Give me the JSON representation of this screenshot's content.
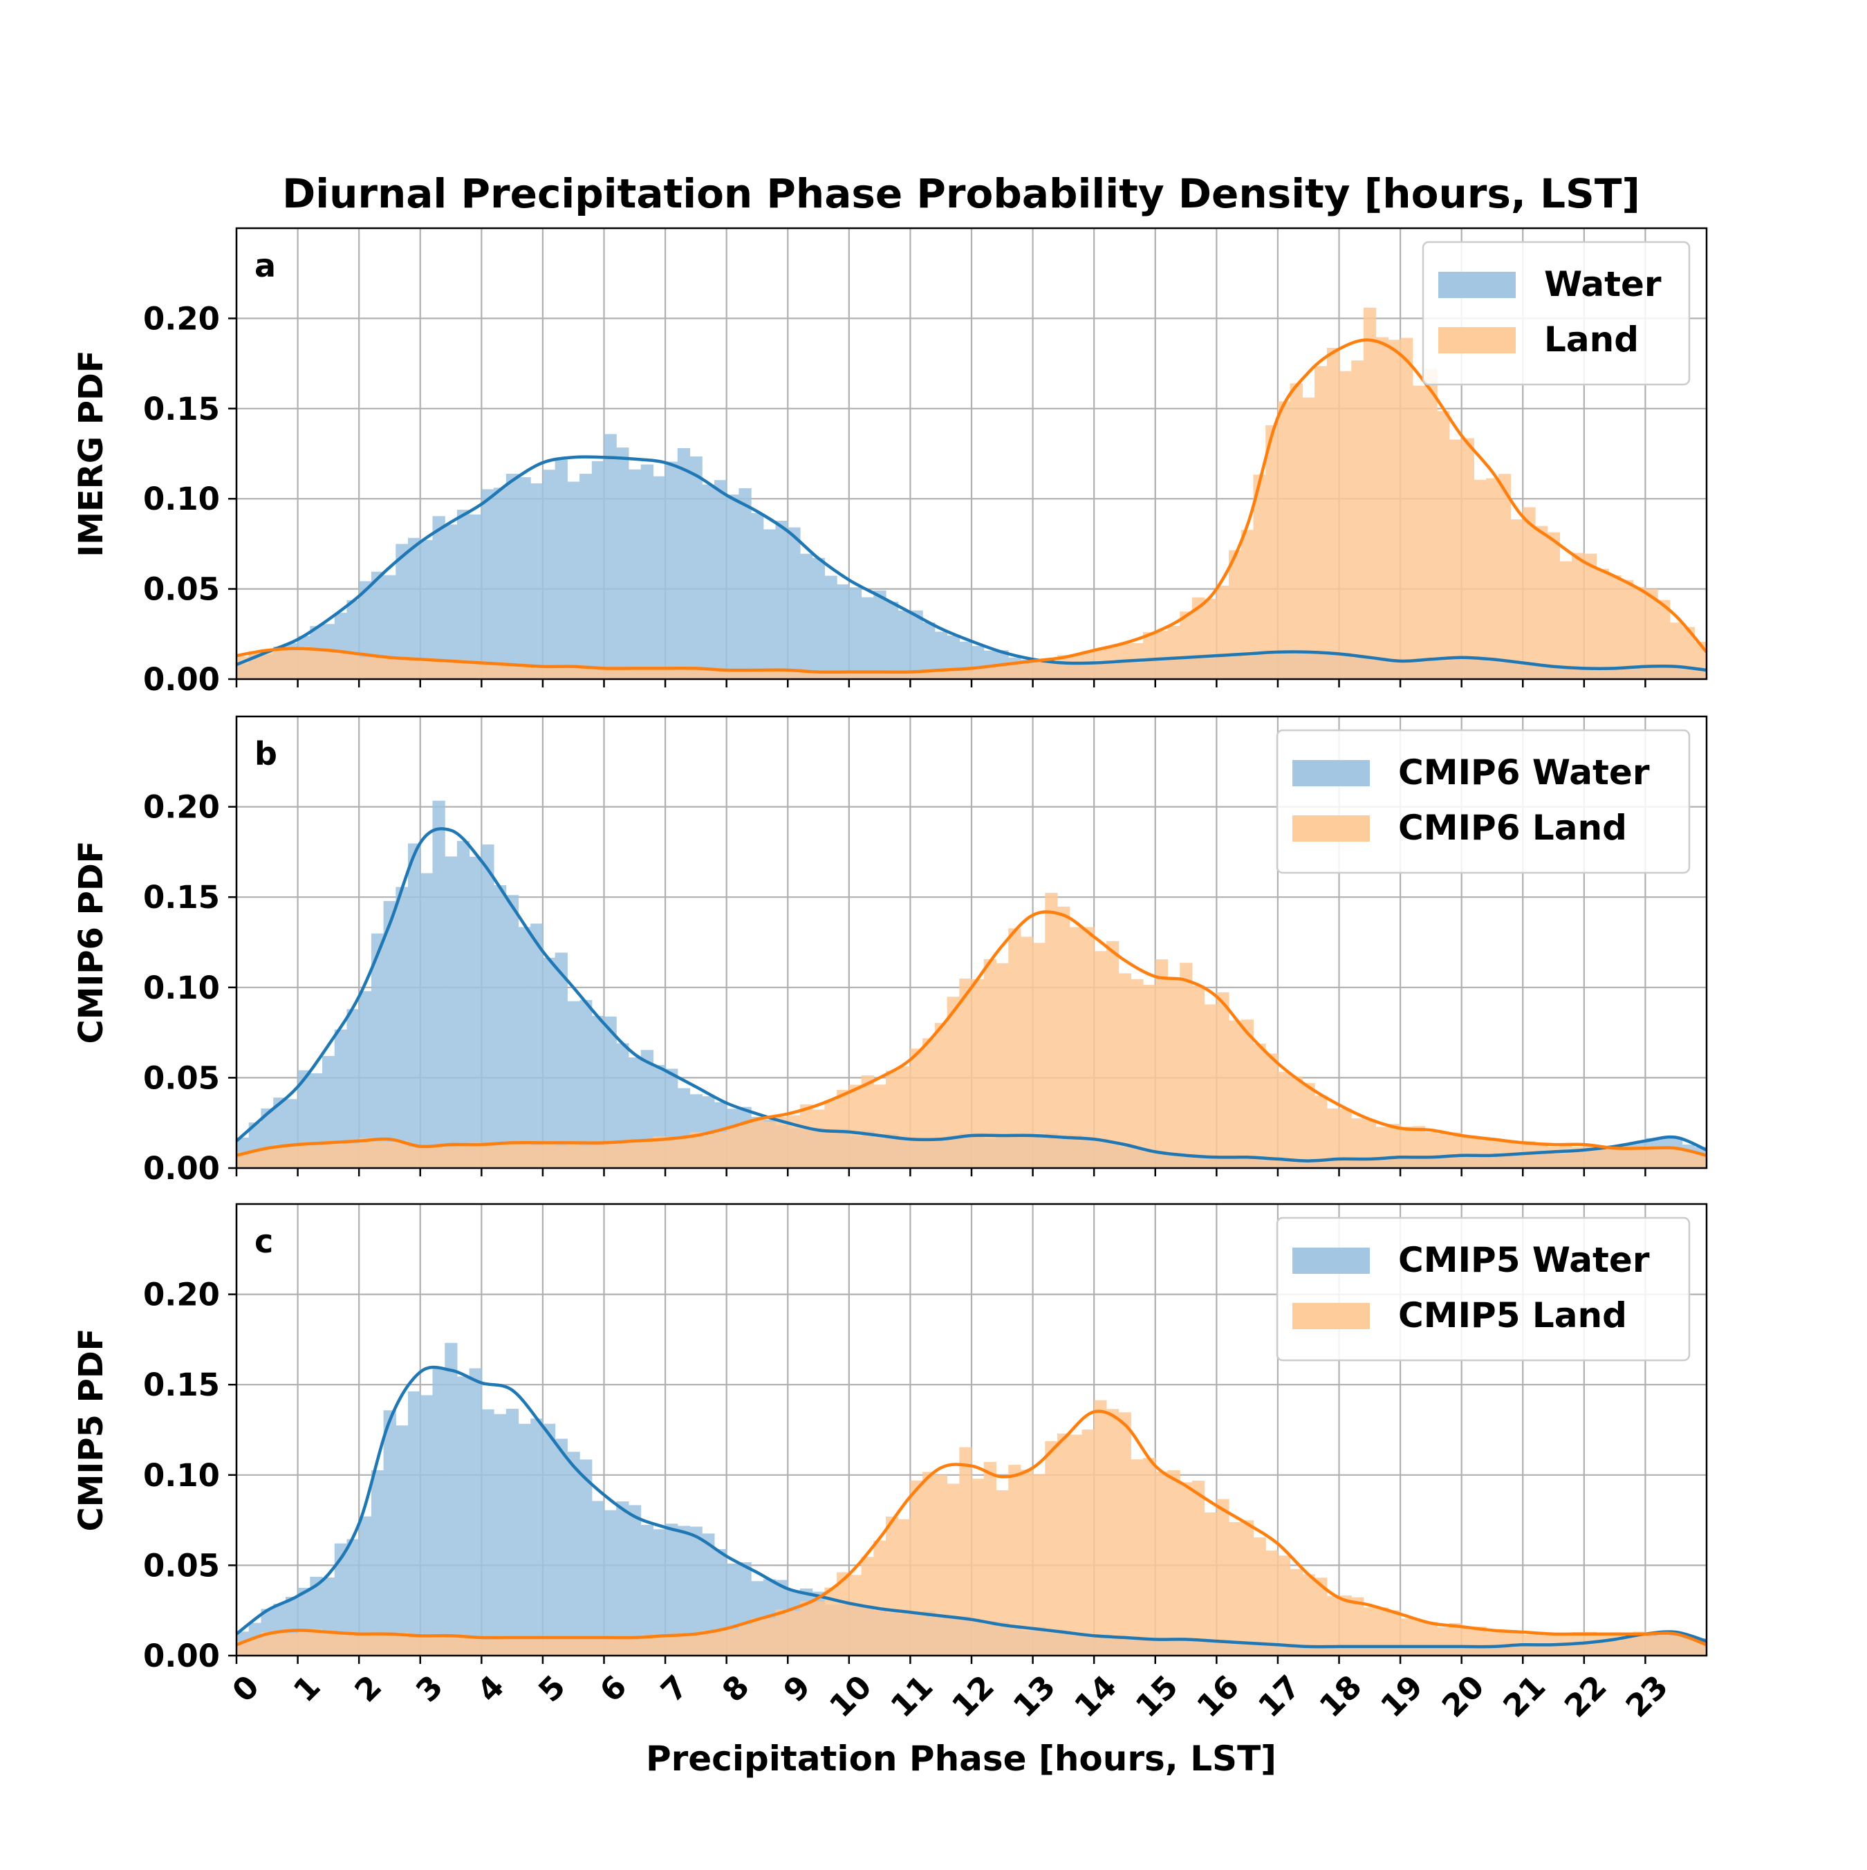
{
  "title": "Diurnal Precipitation Phase Probability Density [hours, LST]",
  "xlabel": "Precipitation Phase [hours, LST]",
  "colors": {
    "water": "#1f77b4",
    "land": "#ff7f0e",
    "water_fill": "#9ec3e0",
    "land_fill": "#fec896",
    "grid": "#b0b0b0"
  },
  "chart_data": [
    {
      "type": "area",
      "panel": "a",
      "ylabel": "IMERG PDF",
      "xlim": [
        0,
        24
      ],
      "ylim": [
        0,
        0.25
      ],
      "grid": true,
      "legend_position": "top-right",
      "x_ticks": [
        0,
        1,
        2,
        3,
        4,
        5,
        6,
        7,
        8,
        9,
        10,
        11,
        12,
        13,
        14,
        15,
        16,
        17,
        18,
        19,
        20,
        21,
        22,
        23
      ],
      "y_ticks": [
        "0.00",
        "0.05",
        "0.10",
        "0.15",
        "0.20"
      ],
      "series": [
        {
          "name": "Water",
          "key": "water",
          "x": [
            0,
            0.5,
            1,
            1.5,
            2,
            2.5,
            3,
            3.5,
            4,
            4.5,
            5,
            5.5,
            6,
            6.5,
            7,
            7.5,
            8,
            8.5,
            9,
            9.5,
            10,
            10.5,
            11,
            11.5,
            12,
            12.5,
            13,
            13.5,
            14,
            14.5,
            15,
            15.5,
            16,
            16.5,
            17,
            17.5,
            18,
            18.5,
            19,
            19.5,
            20,
            20.5,
            21,
            21.5,
            22,
            22.5,
            23,
            23.5,
            24
          ],
          "y": [
            0.008,
            0.015,
            0.022,
            0.033,
            0.046,
            0.062,
            0.076,
            0.087,
            0.097,
            0.11,
            0.12,
            0.123,
            0.123,
            0.122,
            0.12,
            0.113,
            0.102,
            0.093,
            0.082,
            0.067,
            0.055,
            0.046,
            0.037,
            0.028,
            0.021,
            0.015,
            0.011,
            0.009,
            0.009,
            0.01,
            0.011,
            0.012,
            0.013,
            0.014,
            0.015,
            0.015,
            0.014,
            0.012,
            0.01,
            0.011,
            0.012,
            0.011,
            0.009,
            0.007,
            0.006,
            0.006,
            0.007,
            0.007,
            0.005
          ]
        },
        {
          "name": "Land",
          "key": "land",
          "x": [
            0,
            0.5,
            1,
            1.5,
            2,
            2.5,
            3,
            3.5,
            4,
            4.5,
            5,
            5.5,
            6,
            6.5,
            7,
            7.5,
            8,
            8.5,
            9,
            9.5,
            10,
            10.5,
            11,
            11.5,
            12,
            12.5,
            13,
            13.5,
            14,
            14.5,
            15,
            15.5,
            16,
            16.5,
            17,
            17.5,
            18,
            18.5,
            19,
            19.5,
            20,
            20.5,
            21,
            21.5,
            22,
            22.5,
            23,
            23.5,
            24
          ],
          "y": [
            0.013,
            0.016,
            0.017,
            0.016,
            0.014,
            0.012,
            0.011,
            0.01,
            0.009,
            0.008,
            0.007,
            0.007,
            0.006,
            0.006,
            0.006,
            0.006,
            0.005,
            0.005,
            0.005,
            0.004,
            0.004,
            0.004,
            0.004,
            0.005,
            0.006,
            0.008,
            0.01,
            0.012,
            0.016,
            0.02,
            0.026,
            0.035,
            0.05,
            0.085,
            0.145,
            0.17,
            0.183,
            0.188,
            0.18,
            0.16,
            0.135,
            0.115,
            0.09,
            0.077,
            0.065,
            0.057,
            0.048,
            0.035,
            0.015
          ]
        }
      ]
    },
    {
      "type": "area",
      "panel": "b",
      "ylabel": "CMIP6 PDF",
      "xlim": [
        0,
        24
      ],
      "ylim": [
        0,
        0.25
      ],
      "grid": true,
      "legend_position": "top-right",
      "x_ticks": [
        0,
        1,
        2,
        3,
        4,
        5,
        6,
        7,
        8,
        9,
        10,
        11,
        12,
        13,
        14,
        15,
        16,
        17,
        18,
        19,
        20,
        21,
        22,
        23
      ],
      "y_ticks": [
        "0.00",
        "0.05",
        "0.10",
        "0.15",
        "0.20"
      ],
      "series": [
        {
          "name": "CMIP6 Water",
          "key": "water",
          "x": [
            0,
            0.5,
            1,
            1.5,
            2,
            2.5,
            3,
            3.5,
            4,
            4.5,
            5,
            5.5,
            6,
            6.5,
            7,
            7.5,
            8,
            8.5,
            9,
            9.5,
            10,
            10.5,
            11,
            11.5,
            12,
            12.5,
            13,
            13.5,
            14,
            14.5,
            15,
            15.5,
            16,
            16.5,
            17,
            17.5,
            18,
            18.5,
            19,
            19.5,
            20,
            20.5,
            21,
            21.5,
            22,
            22.5,
            23,
            23.5,
            24
          ],
          "y": [
            0.015,
            0.03,
            0.045,
            0.068,
            0.095,
            0.135,
            0.18,
            0.187,
            0.17,
            0.145,
            0.12,
            0.1,
            0.08,
            0.063,
            0.054,
            0.045,
            0.036,
            0.03,
            0.025,
            0.021,
            0.02,
            0.018,
            0.016,
            0.016,
            0.018,
            0.018,
            0.018,
            0.017,
            0.016,
            0.013,
            0.009,
            0.007,
            0.006,
            0.006,
            0.005,
            0.004,
            0.005,
            0.005,
            0.006,
            0.006,
            0.007,
            0.007,
            0.008,
            0.009,
            0.01,
            0.012,
            0.015,
            0.017,
            0.01
          ]
        },
        {
          "name": "CMIP6 Land",
          "key": "land",
          "x": [
            0,
            0.5,
            1,
            1.5,
            2,
            2.5,
            3,
            3.5,
            4,
            4.5,
            5,
            5.5,
            6,
            6.5,
            7,
            7.5,
            8,
            8.5,
            9,
            9.5,
            10,
            10.5,
            11,
            11.5,
            12,
            12.5,
            13,
            13.5,
            14,
            14.5,
            15,
            15.5,
            16,
            16.5,
            17,
            17.5,
            18,
            18.5,
            19,
            19.5,
            20,
            20.5,
            21,
            21.5,
            22,
            22.5,
            23,
            23.5,
            24
          ],
          "y": [
            0.007,
            0.011,
            0.013,
            0.014,
            0.015,
            0.016,
            0.012,
            0.013,
            0.013,
            0.014,
            0.014,
            0.014,
            0.014,
            0.015,
            0.016,
            0.018,
            0.022,
            0.027,
            0.03,
            0.035,
            0.042,
            0.05,
            0.06,
            0.078,
            0.1,
            0.123,
            0.14,
            0.14,
            0.128,
            0.115,
            0.106,
            0.104,
            0.095,
            0.075,
            0.058,
            0.045,
            0.035,
            0.027,
            0.022,
            0.021,
            0.018,
            0.016,
            0.014,
            0.013,
            0.013,
            0.011,
            0.011,
            0.011,
            0.007
          ]
        }
      ]
    },
    {
      "type": "area",
      "panel": "c",
      "ylabel": "CMIP5 PDF",
      "xlim": [
        0,
        24
      ],
      "ylim": [
        0,
        0.25
      ],
      "grid": true,
      "legend_position": "top-right",
      "x_ticks": [
        0,
        1,
        2,
        3,
        4,
        5,
        6,
        7,
        8,
        9,
        10,
        11,
        12,
        13,
        14,
        15,
        16,
        17,
        18,
        19,
        20,
        21,
        22,
        23
      ],
      "y_ticks": [
        "0.00",
        "0.05",
        "0.10",
        "0.15",
        "0.20"
      ],
      "series": [
        {
          "name": "CMIP5 Water",
          "key": "water",
          "x": [
            0,
            0.5,
            1,
            1.5,
            2,
            2.5,
            3,
            3.5,
            4,
            4.5,
            5,
            5.5,
            6,
            6.5,
            7,
            7.5,
            8,
            8.5,
            9,
            9.5,
            10,
            10.5,
            11,
            11.5,
            12,
            12.5,
            13,
            13.5,
            14,
            14.5,
            15,
            15.5,
            16,
            16.5,
            17,
            17.5,
            18,
            18.5,
            19,
            19.5,
            20,
            20.5,
            21,
            21.5,
            22,
            22.5,
            23,
            23.5,
            24
          ],
          "y": [
            0.012,
            0.025,
            0.033,
            0.045,
            0.073,
            0.13,
            0.157,
            0.158,
            0.151,
            0.147,
            0.127,
            0.105,
            0.089,
            0.077,
            0.071,
            0.066,
            0.055,
            0.046,
            0.037,
            0.033,
            0.029,
            0.026,
            0.024,
            0.022,
            0.02,
            0.017,
            0.015,
            0.013,
            0.011,
            0.01,
            0.009,
            0.009,
            0.008,
            0.007,
            0.006,
            0.005,
            0.005,
            0.005,
            0.005,
            0.005,
            0.005,
            0.005,
            0.006,
            0.006,
            0.007,
            0.009,
            0.012,
            0.013,
            0.008
          ]
        },
        {
          "name": "CMIP5 Land",
          "key": "land",
          "x": [
            0,
            0.5,
            1,
            1.5,
            2,
            2.5,
            3,
            3.5,
            4,
            4.5,
            5,
            5.5,
            6,
            6.5,
            7,
            7.5,
            8,
            8.5,
            9,
            9.5,
            10,
            10.5,
            11,
            11.5,
            12,
            12.5,
            13,
            13.5,
            14,
            14.5,
            15,
            15.5,
            16,
            16.5,
            17,
            17.5,
            18,
            18.5,
            19,
            19.5,
            20,
            20.5,
            21,
            21.5,
            22,
            22.5,
            23,
            23.5,
            24
          ],
          "y": [
            0.006,
            0.012,
            0.014,
            0.013,
            0.012,
            0.012,
            0.011,
            0.011,
            0.01,
            0.01,
            0.01,
            0.01,
            0.01,
            0.01,
            0.011,
            0.012,
            0.015,
            0.02,
            0.025,
            0.032,
            0.045,
            0.065,
            0.088,
            0.104,
            0.105,
            0.099,
            0.104,
            0.12,
            0.135,
            0.128,
            0.105,
            0.094,
            0.083,
            0.073,
            0.062,
            0.045,
            0.032,
            0.028,
            0.023,
            0.018,
            0.016,
            0.014,
            0.013,
            0.012,
            0.012,
            0.012,
            0.012,
            0.012,
            0.006
          ]
        }
      ]
    }
  ]
}
